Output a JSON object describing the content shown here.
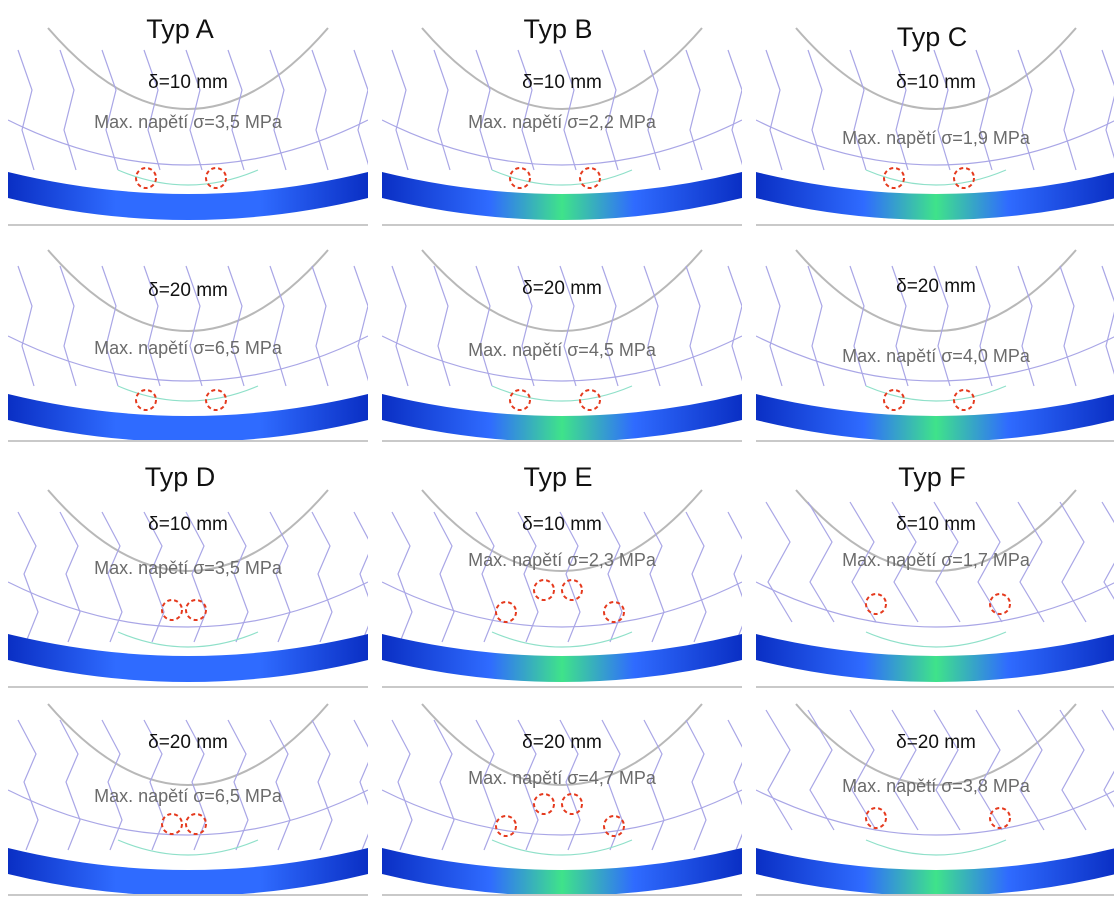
{
  "types": [
    {
      "title": "Typ A",
      "style": "hex",
      "panels": [
        {
          "deflection": "δ=10 mm",
          "stress": "Max. napětí σ=3,5 MPa"
        },
        {
          "deflection": "δ=20 mm",
          "stress": "Max. napětí σ=6,5 MPa"
        }
      ]
    },
    {
      "title": "Typ B",
      "style": "hex",
      "panels": [
        {
          "deflection": "δ=10 mm",
          "stress": "Max. napětí σ=2,2 MPa"
        },
        {
          "deflection": "δ=20 mm",
          "stress": "Max. napětí σ=4,5 MPa"
        }
      ]
    },
    {
      "title": "Typ C",
      "style": "hex",
      "panels": [
        {
          "deflection": "δ=10 mm",
          "stress": "Max. napětí σ=1,9 MPa"
        },
        {
          "deflection": "δ=20 mm",
          "stress": "Max. napětí σ=4,0 MPa"
        }
      ]
    },
    {
      "title": "Typ D",
      "style": "reentrant",
      "panels": [
        {
          "deflection": "δ=10 mm",
          "stress": "Max. napětí σ=3,5 MPa"
        },
        {
          "deflection": "δ=20 mm",
          "stress": "Max. napětí σ=6,5 MPa"
        }
      ]
    },
    {
      "title": "Typ E",
      "style": "reentrant",
      "panels": [
        {
          "deflection": "δ=10 mm",
          "stress": "Max. napětí σ=2,3 MPa"
        },
        {
          "deflection": "δ=20 mm",
          "stress": "Max. napětí σ=4,7 MPa"
        }
      ]
    },
    {
      "title": "Typ F",
      "style": "zigzag",
      "panels": [
        {
          "deflection": "δ=10 mm",
          "stress": "Max. napětí σ=1,7 MPa"
        },
        {
          "deflection": "δ=20 mm",
          "stress": "Max. napětí σ=3,8 MPa"
        }
      ]
    }
  ],
  "colors": {
    "hub_outline": "#b8b8b8",
    "cell_lines": "#a9a6e6",
    "cell_lines_high": "#8fe0c9",
    "band_low": "#0a2fc4",
    "band_mid": "#2f6bff",
    "band_high": "#3fe38a",
    "marker": "#e53a1e",
    "ground": "#c9c9c9"
  }
}
